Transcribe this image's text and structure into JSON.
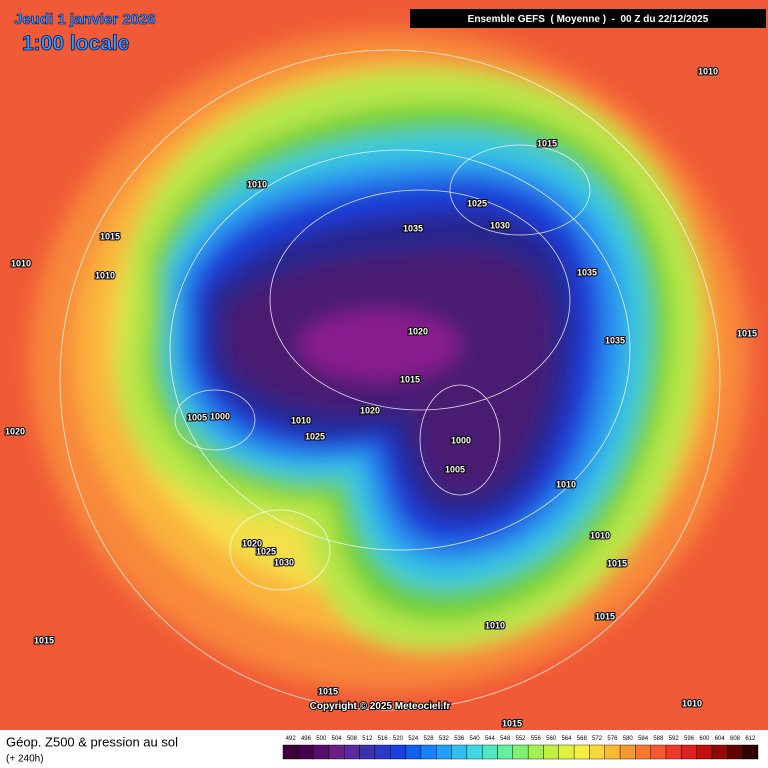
{
  "header": {
    "date": "Jeudi 1 janvier 2026",
    "time": "1:00 locale",
    "run": "Ensemble GEFS  ( Moyenne )  -  00 Z du 22/12/2025"
  },
  "map": {
    "isobar_labels": [
      1010,
      1015,
      1010,
      1025,
      1035,
      1030,
      1015,
      1010,
      1010,
      1035,
      1020,
      1035,
      1015,
      1015,
      1020,
      1005,
      1000,
      1010,
      1025,
      1000,
      1020,
      1005,
      1010,
      1010,
      1020,
      1025,
      1030,
      1015,
      1010,
      1015,
      1015,
      1015,
      1015,
      1010
    ],
    "copyright": "Copyright © 2025 Meteociel.fr"
  },
  "footer": {
    "title": "Géop. Z500 & pression au sol",
    "forecast": "(+ 240h)"
  },
  "legend": {
    "values": [
      492,
      496,
      500,
      504,
      508,
      512,
      516,
      520,
      524,
      528,
      532,
      536,
      540,
      544,
      548,
      552,
      556,
      560,
      564,
      568,
      572,
      576,
      580,
      584,
      588,
      592,
      596,
      600,
      604,
      608,
      612
    ],
    "colors": [
      "#3a0038",
      "#4a0050",
      "#5a1068",
      "#6a2080",
      "#5a2aa0",
      "#3a30b0",
      "#2a3ac8",
      "#1a40e0",
      "#1060f0",
      "#1880f8",
      "#20a0f8",
      "#30c0f0",
      "#40d8e0",
      "#50e8c0",
      "#60f0a0",
      "#80f070",
      "#a0f050",
      "#c0f040",
      "#e0f040",
      "#f8f040",
      "#f8d838",
      "#f8b830",
      "#f89830",
      "#f87830",
      "#f85830",
      "#f03828",
      "#e02020",
      "#c01010",
      "#900808",
      "#600404",
      "#300000"
    ]
  }
}
